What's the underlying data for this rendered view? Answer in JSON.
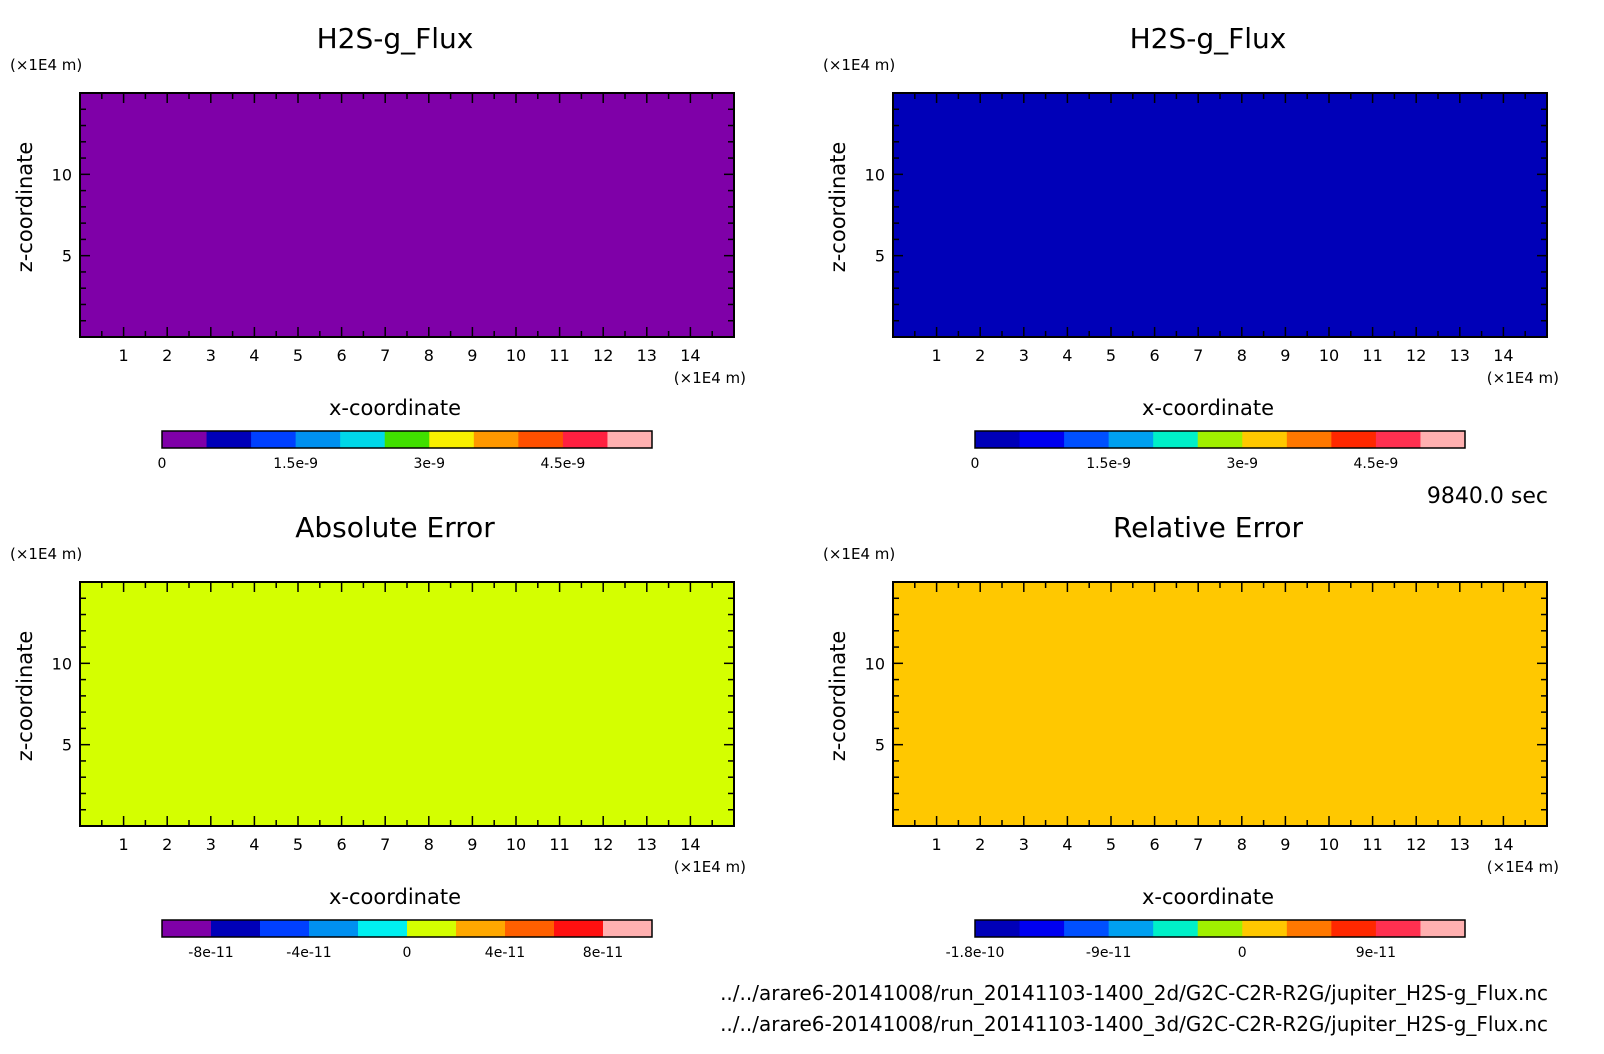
{
  "time_label": "9840.0 sec",
  "files": [
    "../../arare6-20141008/run_20141103-1400_2d/G2C-C2R-R2G/jupiter_H2S-g_Flux.nc",
    "../../arare6-20141008/run_20141103-1400_3d/G2C-C2R-R2G/jupiter_H2S-g_Flux.nc"
  ],
  "chart_data": [
    {
      "type": "heatmap",
      "title": "H2S-g_Flux",
      "xlabel": "x-coordinate",
      "ylabel": "z-coordinate",
      "x_unit": "(×1E4 m)",
      "y_unit": "(×1E4 m)",
      "xlim": [
        0,
        15
      ],
      "ylim": [
        0,
        15
      ],
      "xticks": [
        "1",
        "2",
        "3",
        "4",
        "5",
        "6",
        "7",
        "8",
        "9",
        "10",
        "11",
        "12",
        "13",
        "14"
      ],
      "yticks": [
        "5",
        "10"
      ],
      "field_color": "#7f00a8",
      "field_value": 0,
      "colorbar": {
        "colors": [
          "#7f00a8",
          "#0000b8",
          "#0040ff",
          "#0090f0",
          "#00d8e8",
          "#40e000",
          "#f8f000",
          "#ff9800",
          "#ff5000",
          "#ff2040",
          "#ffb0b0"
        ],
        "tick_labels": [
          "0",
          "1.5e-9",
          "3e-9",
          "4.5e-9"
        ]
      }
    },
    {
      "type": "heatmap",
      "title": "H2S-g_Flux",
      "xlabel": "x-coordinate",
      "ylabel": "z-coordinate",
      "x_unit": "(×1E4 m)",
      "y_unit": "(×1E4 m)",
      "xlim": [
        0,
        15
      ],
      "ylim": [
        0,
        15
      ],
      "xticks": [
        "1",
        "2",
        "3",
        "4",
        "5",
        "6",
        "7",
        "8",
        "9",
        "10",
        "11",
        "12",
        "13",
        "14"
      ],
      "yticks": [
        "5",
        "10"
      ],
      "field_color": "#0000b8",
      "field_value": 0,
      "colorbar": {
        "colors": [
          "#0000b8",
          "#0000f0",
          "#0050ff",
          "#00a0f0",
          "#00f0c8",
          "#a0f000",
          "#ffc800",
          "#ff7800",
          "#ff2800",
          "#ff3050",
          "#ffb0b0"
        ],
        "tick_labels": [
          "0",
          "1.5e-9",
          "3e-9",
          "4.5e-9"
        ]
      }
    },
    {
      "type": "heatmap",
      "title": "Absolute Error",
      "xlabel": "x-coordinate",
      "ylabel": "z-coordinate",
      "x_unit": "(×1E4 m)",
      "y_unit": "(×1E4 m)",
      "xlim": [
        0,
        15
      ],
      "ylim": [
        0,
        15
      ],
      "xticks": [
        "1",
        "2",
        "3",
        "4",
        "5",
        "6",
        "7",
        "8",
        "9",
        "10",
        "11",
        "12",
        "13",
        "14"
      ],
      "yticks": [
        "5",
        "10"
      ],
      "field_color": "#d4ff00",
      "field_value": 0,
      "colorbar": {
        "colors": [
          "#7f00a8",
          "#0000b8",
          "#0040ff",
          "#0090f0",
          "#00f0f0",
          "#d4ff00",
          "#ffa800",
          "#ff6000",
          "#ff1010",
          "#ffb0b0"
        ],
        "tick_labels": [
          "-8e-11",
          "-4e-11",
          "0",
          "4e-11",
          "8e-11"
        ]
      }
    },
    {
      "type": "heatmap",
      "title": "Relative Error",
      "xlabel": "x-coordinate",
      "ylabel": "z-coordinate",
      "x_unit": "(×1E4 m)",
      "y_unit": "(×1E4 m)",
      "xlim": [
        0,
        15
      ],
      "ylim": [
        0,
        15
      ],
      "xticks": [
        "1",
        "2",
        "3",
        "4",
        "5",
        "6",
        "7",
        "8",
        "9",
        "10",
        "11",
        "12",
        "13",
        "14"
      ],
      "yticks": [
        "5",
        "10"
      ],
      "field_color": "#ffc800",
      "field_value": 0,
      "colorbar": {
        "colors": [
          "#0000b8",
          "#0000f0",
          "#0050ff",
          "#00a0f0",
          "#00f0c8",
          "#a0f000",
          "#ffc800",
          "#ff7800",
          "#ff2800",
          "#ff3050",
          "#ffb0b0"
        ],
        "tick_labels": [
          "-1.8e-10",
          "-9e-11",
          "0",
          "9e-11"
        ]
      }
    }
  ]
}
